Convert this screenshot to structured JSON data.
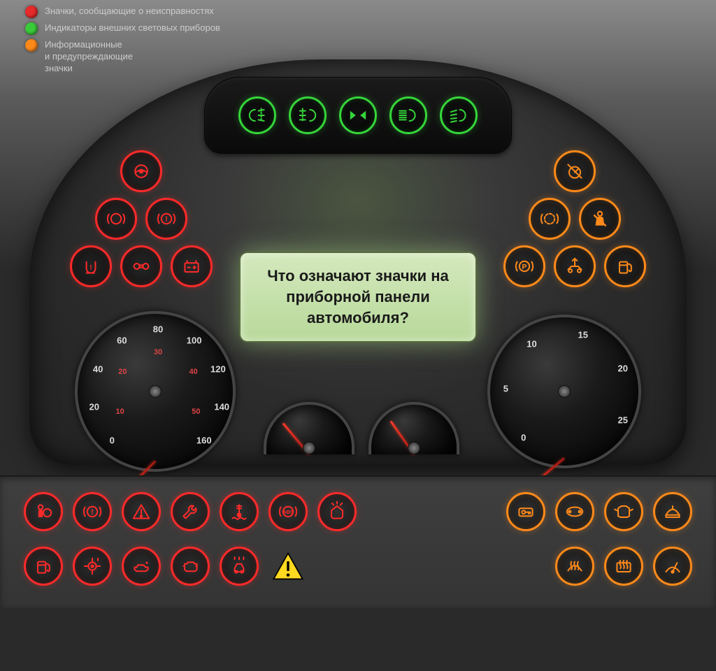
{
  "legend": [
    {
      "color": "#e62a2a",
      "label": "Значки, сообщающие о неисправностях"
    },
    {
      "color": "#3acb3a",
      "label": "Индикаторы внешних световых приборов"
    },
    {
      "color": "#ff8a1a",
      "label": "Информационные\nи предупреждающие\nзначки"
    }
  ],
  "colors": {
    "red": "#ff2a2a",
    "green": "#35d63a",
    "orange": "#ff8a1a",
    "yellow": "#ffd820",
    "display_bg": "#c8e0a8",
    "dash_bg": "#2c2c2c",
    "needle": "#ff3020"
  },
  "display_text": "Что означают значки на приборной панели автомобиля?",
  "top_green_icons": [
    {
      "name": "rear-fog-light-icon"
    },
    {
      "name": "front-fog-light-icon"
    },
    {
      "name": "turn-signals-icon"
    },
    {
      "name": "high-beam-icon"
    },
    {
      "name": "headlight-on-icon"
    }
  ],
  "left_triangle": [
    [
      {
        "name": "power-steering-icon"
      }
    ],
    [
      {
        "name": "brake-pad-icon"
      },
      {
        "name": "brake-system-icon"
      }
    ],
    [
      {
        "name": "tire-pressure-icon"
      },
      {
        "name": "diff-lock-icon"
      },
      {
        "name": "battery-icon"
      }
    ]
  ],
  "right_triangle": [
    [
      {
        "name": "cruise-off-icon"
      }
    ],
    [
      {
        "name": "brake-wear-icon"
      },
      {
        "name": "seatbelt-icon"
      }
    ],
    [
      {
        "name": "parking-brake-icon"
      },
      {
        "name": "suspension-icon"
      },
      {
        "name": "low-fuel-icon"
      }
    ]
  ],
  "speedometer": {
    "ticks": [
      0,
      20,
      40,
      60,
      80,
      100,
      120,
      140,
      160
    ],
    "inner_ticks": [
      10,
      20,
      30,
      40,
      50
    ],
    "needle_angle": -135
  },
  "tachometer": {
    "ticks": [
      0,
      5,
      10,
      15,
      20,
      25
    ],
    "needle_angle": -130
  },
  "small_gauges": [
    {
      "name": "fuel-gauge",
      "needle_angle": -40
    },
    {
      "name": "temp-gauge",
      "needle_angle": -35
    }
  ],
  "bottom_row1_left": [
    {
      "name": "airbag-icon"
    },
    {
      "name": "brake-warning-icon"
    },
    {
      "name": "general-warning-icon"
    },
    {
      "name": "service-wrench-icon"
    },
    {
      "name": "coolant-temp-icon"
    },
    {
      "name": "abs-icon"
    },
    {
      "name": "washer-fluid-icon"
    }
  ],
  "bottom_row1_right": [
    {
      "name": "key-detected-icon"
    },
    {
      "name": "economy-mode-icon"
    },
    {
      "name": "door-open-icon"
    },
    {
      "name": "hood-open-icon"
    }
  ],
  "bottom_row2_left": [
    {
      "name": "fuel-icon"
    },
    {
      "name": "transmission-temp-icon"
    },
    {
      "name": "oil-pressure-icon"
    },
    {
      "name": "check-engine-icon"
    },
    {
      "name": "vehicle-ahead-icon"
    },
    {
      "name": "hazard-yellow-icon",
      "yellow": true
    }
  ],
  "bottom_row2_right": [
    {
      "name": "defrost-front-icon"
    },
    {
      "name": "defrost-rear-icon"
    },
    {
      "name": "wiper-icon"
    }
  ]
}
